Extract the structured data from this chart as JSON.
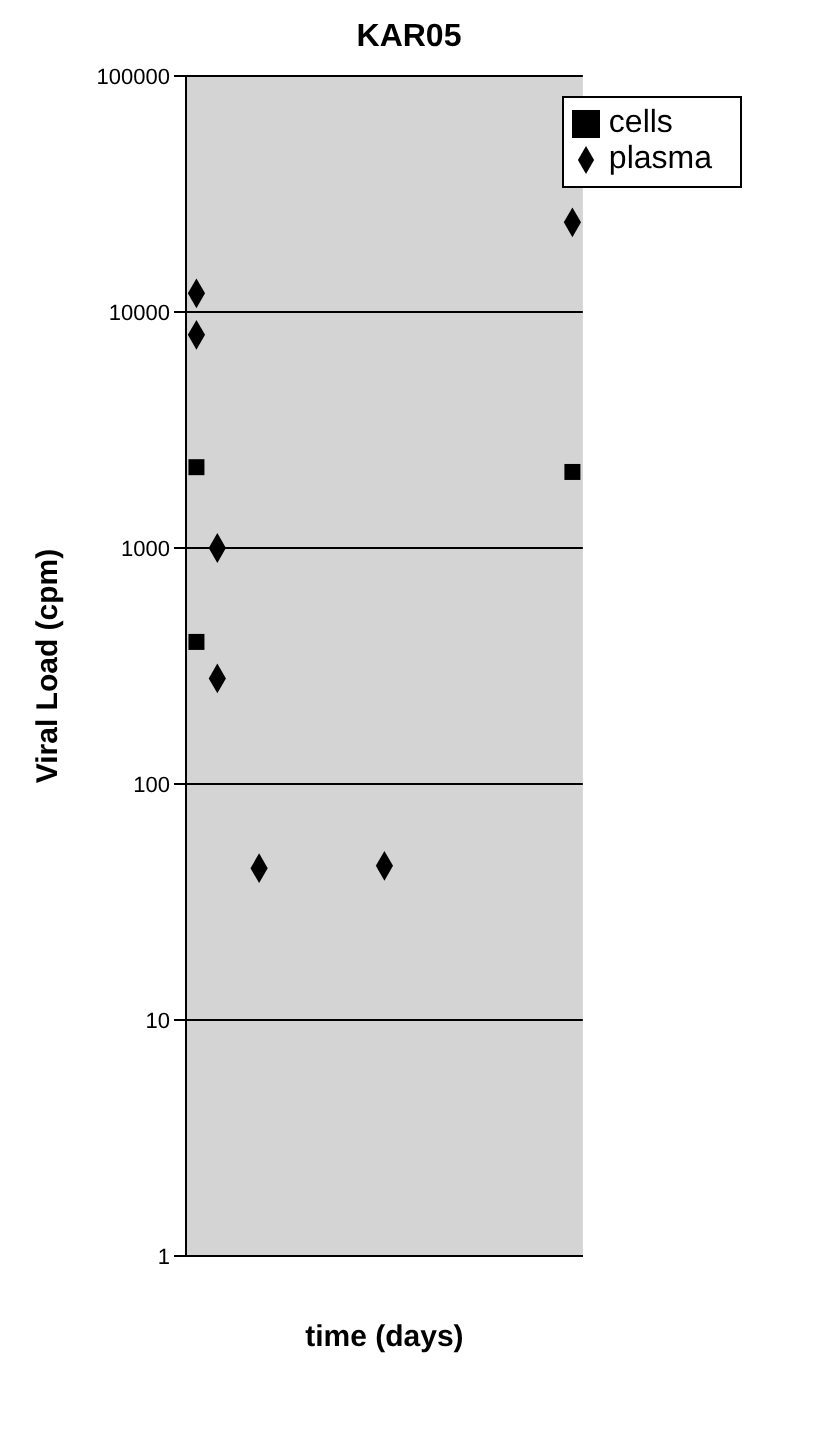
{
  "chart_data": {
    "type": "scatter",
    "title": "KAR05",
    "xlabel": "time (days)",
    "ylabel": "Viral Load (cpm)",
    "categories": [
      null,
      null,
      null,
      null,
      null,
      null,
      null,
      null,
      null,
      null,
      null,
      null,
      null,
      null,
      null,
      null,
      null,
      null,
      null
    ],
    "series": [
      {
        "name": "plasma",
        "color": "#000000",
        "marker": "diamond",
        "values": [
          8000,
          280,
          null,
          44,
          null,
          null,
          null,
          null,
          null,
          45,
          null,
          null,
          null,
          null,
          null,
          null,
          null,
          null,
          24000
        ]
      },
      {
        "color": "#000000",
        "marker": "diamond",
        "values": [
          12000,
          1000,
          null,
          null,
          null,
          null,
          null,
          null,
          null,
          null,
          null,
          null,
          null,
          null,
          null,
          null,
          null,
          null,
          null
        ]
      },
      {
        "name": "cells",
        "color": "#000000",
        "marker": "square",
        "values": [
          400,
          null,
          null,
          null,
          null,
          null,
          null,
          null,
          null,
          null,
          null,
          null,
          null,
          null,
          null,
          null,
          null,
          null,
          2100
        ]
      },
      {
        "color": "#000000",
        "marker": "square",
        "values": [
          2200,
          null,
          null,
          null,
          null,
          null,
          null,
          null,
          null,
          null,
          null,
          null,
          null,
          null,
          null,
          null,
          null,
          null,
          null
        ]
      }
    ],
    "ylim": [
      1,
      100000
    ],
    "yticks": [
      1,
      10,
      100,
      1000,
      10000,
      100000
    ],
    "log": "y",
    "grid": "y",
    "legend": "top right",
    "tick_labels": "y"
  }
}
